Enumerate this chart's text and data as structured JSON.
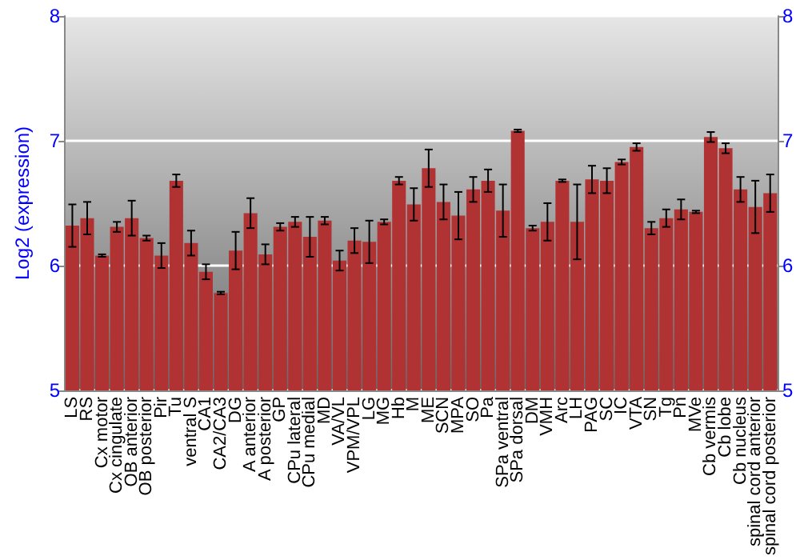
{
  "chart_data": {
    "type": "bar",
    "ylabel": "Log2 (expression)",
    "categories": [
      "LS",
      "RS",
      "Cx motor",
      "Cx cingulate",
      "OB anterior",
      "OB posterior",
      "Pir",
      "Tu",
      "ventral S",
      "CA1",
      "CA2/CA3",
      "DG",
      "A anterior",
      "A posterior",
      "GP",
      "CPu lateral",
      "CPu medial",
      "MD",
      "VA/VL",
      "VPM/VPL",
      "LG",
      "MG",
      "Hb",
      "M",
      "ME",
      "SCN",
      "MPA",
      "SO",
      "Pa",
      "SPa ventral",
      "SPa dorsal",
      "DM",
      "VMH",
      "Arc",
      "LH",
      "PAG",
      "SC",
      "IC",
      "VTA",
      "SN",
      "Tg",
      "Pn",
      "MVe",
      "Cb vermis",
      "Cb lobe",
      "Cb nucleus",
      "spinal cord anterior",
      "spinal cord posterior"
    ],
    "values": [
      6.32,
      6.38,
      6.08,
      6.31,
      6.38,
      6.22,
      6.08,
      6.68,
      6.18,
      5.95,
      5.78,
      6.12,
      6.42,
      6.09,
      6.31,
      6.35,
      6.23,
      6.36,
      6.04,
      6.2,
      6.19,
      6.35,
      6.68,
      6.49,
      6.78,
      6.51,
      6.4,
      6.61,
      6.68,
      6.44,
      7.08,
      6.3,
      6.35,
      6.68,
      6.35,
      6.69,
      6.68,
      6.83,
      6.95,
      6.3,
      6.38,
      6.45,
      6.43,
      7.03,
      6.94,
      6.61,
      6.47,
      6.58
    ],
    "errors": [
      0.17,
      0.13,
      0.01,
      0.04,
      0.14,
      0.02,
      0.1,
      0.05,
      0.1,
      0.06,
      0.01,
      0.15,
      0.12,
      0.08,
      0.03,
      0.04,
      0.16,
      0.03,
      0.08,
      0.1,
      0.17,
      0.02,
      0.03,
      0.13,
      0.15,
      0.14,
      0.19,
      0.1,
      0.09,
      0.21,
      0.01,
      0.02,
      0.15,
      0.01,
      0.3,
      0.11,
      0.1,
      0.02,
      0.03,
      0.05,
      0.07,
      0.08,
      0.01,
      0.04,
      0.04,
      0.1,
      0.21,
      0.15
    ],
    "color": "#b03232",
    "ylim": [
      5,
      8
    ],
    "yticks": [
      5,
      6,
      7,
      8
    ],
    "y2lim": [
      5,
      8
    ],
    "y2ticks": [
      5,
      6,
      7,
      8
    ],
    "grid": true
  }
}
